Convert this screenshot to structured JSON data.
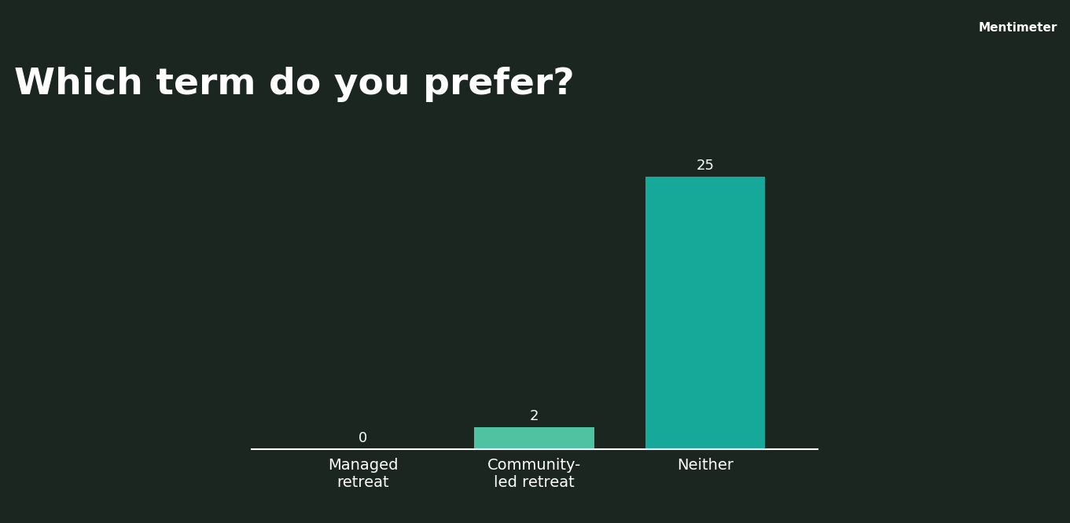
{
  "chart_data": {
    "type": "bar",
    "title": "Which term do you prefer?",
    "annotation": "Mentimeter",
    "categories": [
      "Managed retreat",
      "Community-led retreat",
      "Neither"
    ],
    "values": [
      0,
      2,
      25
    ],
    "colors": [
      "#4fc3a1",
      "#4fc3a1",
      "#16a99a"
    ],
    "ylim": [
      0,
      25
    ],
    "data_labels": true,
    "tick_labels": "x",
    "grid": false
  }
}
